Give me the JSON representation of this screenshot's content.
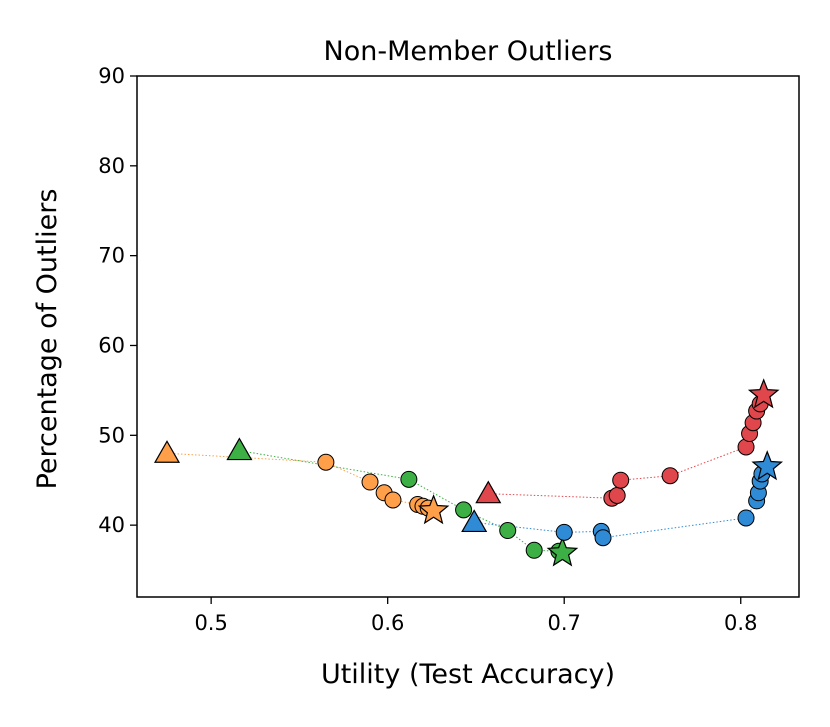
{
  "chart_data": {
    "type": "scatter",
    "title": "Non-Member Outliers",
    "xlabel": "Utility (Test Accuracy)",
    "ylabel": "Percentage of Outliers",
    "xlim": [
      0.458,
      0.833
    ],
    "ylim": [
      32,
      90
    ],
    "xticks": [
      "0.5",
      "0.6",
      "0.7",
      "0.8"
    ],
    "yticks": [
      "40",
      "50",
      "60",
      "70",
      "80",
      "90"
    ],
    "grid": false,
    "legend": "none",
    "series": [
      {
        "color": "#ff9f4a",
        "points": [
          {
            "x": 0.475,
            "y": 48.0,
            "marker": "triangle"
          },
          {
            "x": 0.565,
            "y": 47.0,
            "marker": "circle"
          },
          {
            "x": 0.59,
            "y": 44.8,
            "marker": "circle"
          },
          {
            "x": 0.598,
            "y": 43.6,
            "marker": "circle"
          },
          {
            "x": 0.603,
            "y": 42.8,
            "marker": "circle"
          },
          {
            "x": 0.617,
            "y": 42.3,
            "marker": "circle"
          },
          {
            "x": 0.62,
            "y": 42.1,
            "marker": "circle"
          },
          {
            "x": 0.623,
            "y": 41.9,
            "marker": "circle"
          },
          {
            "x": 0.626,
            "y": 41.6,
            "marker": "star"
          }
        ]
      },
      {
        "color": "#3cb044",
        "points": [
          {
            "x": 0.516,
            "y": 48.3,
            "marker": "triangle"
          },
          {
            "x": 0.612,
            "y": 45.1,
            "marker": "circle"
          },
          {
            "x": 0.643,
            "y": 41.7,
            "marker": "circle"
          },
          {
            "x": 0.668,
            "y": 39.4,
            "marker": "circle"
          },
          {
            "x": 0.683,
            "y": 37.2,
            "marker": "circle"
          },
          {
            "x": 0.697,
            "y": 37.1,
            "marker": "circle"
          },
          {
            "x": 0.699,
            "y": 36.9,
            "marker": "star"
          }
        ]
      },
      {
        "color": "#2f8bd6",
        "points": [
          {
            "x": 0.649,
            "y": 40.3,
            "marker": "triangle"
          },
          {
            "x": 0.7,
            "y": 39.2,
            "marker": "circle"
          },
          {
            "x": 0.721,
            "y": 39.3,
            "marker": "circle"
          },
          {
            "x": 0.722,
            "y": 38.6,
            "marker": "circle"
          },
          {
            "x": 0.803,
            "y": 40.8,
            "marker": "circle"
          },
          {
            "x": 0.809,
            "y": 42.7,
            "marker": "circle"
          },
          {
            "x": 0.81,
            "y": 43.6,
            "marker": "circle"
          },
          {
            "x": 0.811,
            "y": 44.9,
            "marker": "circle"
          },
          {
            "x": 0.812,
            "y": 45.7,
            "marker": "circle"
          },
          {
            "x": 0.815,
            "y": 46.5,
            "marker": "star"
          }
        ]
      },
      {
        "color": "#e0474c",
        "points": [
          {
            "x": 0.657,
            "y": 43.5,
            "marker": "triangle"
          },
          {
            "x": 0.727,
            "y": 43.0,
            "marker": "circle"
          },
          {
            "x": 0.73,
            "y": 43.3,
            "marker": "circle"
          },
          {
            "x": 0.732,
            "y": 45.0,
            "marker": "circle"
          },
          {
            "x": 0.76,
            "y": 45.5,
            "marker": "circle"
          },
          {
            "x": 0.803,
            "y": 48.7,
            "marker": "circle"
          },
          {
            "x": 0.805,
            "y": 50.2,
            "marker": "circle"
          },
          {
            "x": 0.807,
            "y": 51.4,
            "marker": "circle"
          },
          {
            "x": 0.809,
            "y": 52.7,
            "marker": "circle"
          },
          {
            "x": 0.811,
            "y": 53.5,
            "marker": "circle"
          },
          {
            "x": 0.813,
            "y": 54.5,
            "marker": "star"
          }
        ]
      }
    ]
  }
}
